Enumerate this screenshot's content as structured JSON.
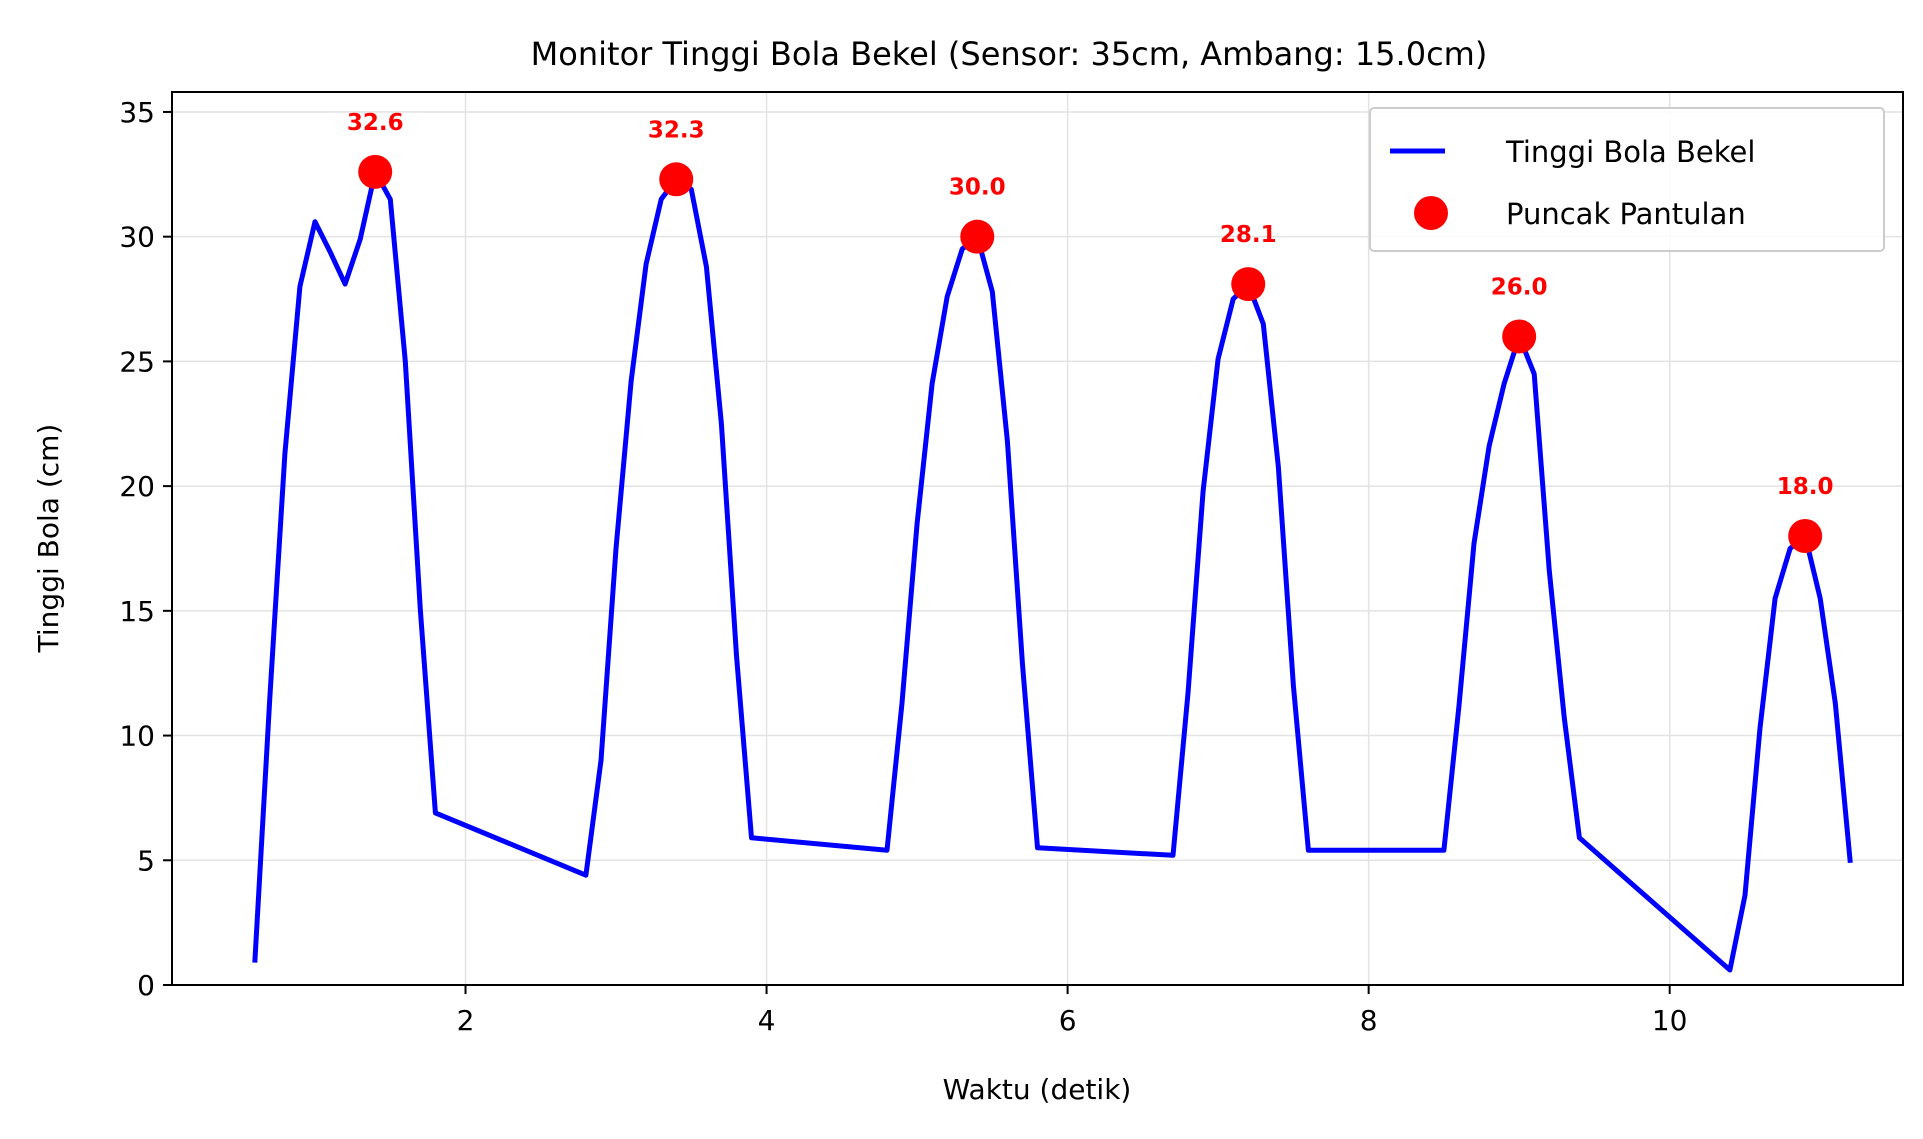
{
  "chart_data": {
    "type": "line",
    "title": "Monitor Tinggi Bola Bekel (Sensor: 35cm, Ambang: 15.0cm)",
    "xlabel": "Waktu (detik)",
    "ylabel": "Tinggi Bola (cm)",
    "xlim": [
      0.05,
      11.55
    ],
    "ylim": [
      0,
      35.8
    ],
    "xticks": [
      2,
      4,
      6,
      8,
      10
    ],
    "yticks": [
      0,
      5,
      10,
      15,
      20,
      25,
      30,
      35
    ],
    "grid": true,
    "legend_position": "top-right",
    "series": [
      {
        "name": "Tinggi Bola Bekel",
        "color": "#0000ff",
        "x": [
          0.6,
          0.7,
          0.8,
          0.9,
          1.0,
          1.1,
          1.2,
          1.3,
          1.4,
          1.5,
          1.6,
          1.7,
          1.8,
          2.8,
          2.9,
          3.0,
          3.1,
          3.2,
          3.3,
          3.4,
          3.5,
          3.6,
          3.7,
          3.8,
          3.9,
          4.8,
          4.9,
          5.0,
          5.1,
          5.2,
          5.3,
          5.4,
          5.5,
          5.6,
          5.7,
          5.8,
          6.7,
          6.8,
          6.9,
          7.0,
          7.1,
          7.2,
          7.3,
          7.4,
          7.5,
          7.6,
          8.5,
          8.6,
          8.7,
          8.8,
          8.9,
          9.0,
          9.1,
          9.2,
          9.3,
          9.4,
          10.4,
          10.5,
          10.6,
          10.7,
          10.8,
          10.9,
          11.0,
          11.1,
          11.2
        ],
        "y": [
          0.9,
          11.5,
          21.3,
          28.0,
          30.6,
          29.4,
          28.1,
          29.9,
          32.6,
          31.5,
          25.0,
          15.0,
          6.9,
          4.4,
          9.0,
          17.5,
          24.2,
          28.9,
          31.5,
          32.3,
          31.9,
          28.8,
          22.5,
          13.2,
          5.9,
          5.4,
          11.3,
          18.5,
          24.1,
          27.6,
          29.5,
          30.0,
          27.8,
          21.8,
          12.9,
          5.5,
          5.2,
          11.7,
          19.8,
          25.1,
          27.5,
          28.1,
          26.5,
          20.8,
          12.0,
          5.4,
          5.4,
          11.2,
          17.7,
          21.6,
          24.1,
          26.0,
          24.5,
          16.6,
          10.7,
          5.9,
          0.6,
          3.6,
          10.3,
          15.5,
          17.5,
          18.0,
          15.5,
          11.3,
          4.9
        ]
      },
      {
        "name": "Puncak Pantulan",
        "color": "#ff0000",
        "marker": "circle",
        "x": [
          1.4,
          3.4,
          5.4,
          7.2,
          9.0,
          10.9
        ],
        "y": [
          32.6,
          32.3,
          30.0,
          28.1,
          26.0,
          18.0
        ],
        "labels": [
          "32.6",
          "32.3",
          "30.0",
          "28.1",
          "26.0",
          "18.0"
        ]
      }
    ]
  }
}
